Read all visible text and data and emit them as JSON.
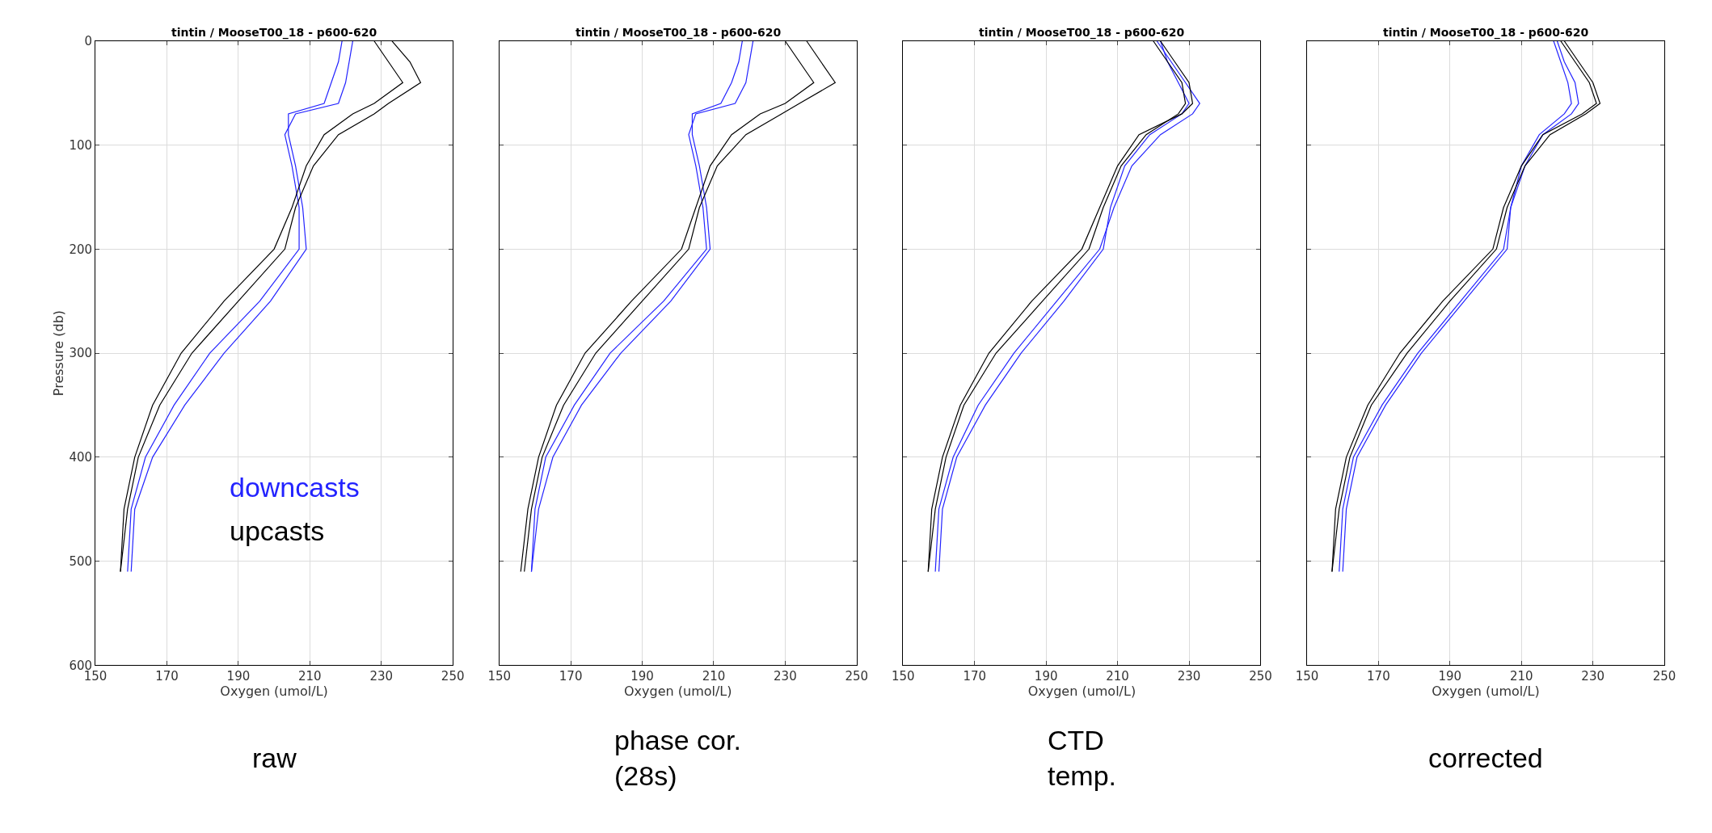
{
  "chart_data": [
    {
      "type": "line",
      "title": "tintin / MooseT00_18 - p600-620",
      "xlabel": "Oxygen (umol/L)",
      "ylabel": "Pressure (db)",
      "xlim": [
        150,
        250
      ],
      "ylim": [
        600,
        0
      ],
      "xticks": [
        150,
        170,
        190,
        210,
        230,
        250
      ],
      "yticks": [
        0,
        100,
        200,
        300,
        400,
        500,
        600
      ],
      "grid": true,
      "annotations": [
        "raw"
      ],
      "series": [
        {
          "name": "downcasts",
          "color": "#2323ff",
          "x": [
            222,
            221,
            220,
            218,
            206,
            203,
            205,
            207,
            207,
            196,
            182,
            172,
            164,
            160,
            159
          ],
          "values": [
            0,
            20,
            40,
            60,
            70,
            90,
            120,
            160,
            200,
            250,
            300,
            350,
            400,
            450,
            510
          ]
        },
        {
          "color": "#2323ff",
          "x": [
            219,
            218,
            216,
            214,
            204,
            204,
            206,
            208,
            209,
            199,
            186,
            175,
            166,
            161,
            160
          ],
          "values": [
            0,
            20,
            40,
            60,
            70,
            90,
            120,
            160,
            200,
            250,
            300,
            350,
            400,
            450,
            510
          ]
        },
        {
          "name": "upcasts",
          "color": "#000000",
          "x": [
            233,
            238,
            241,
            232,
            228,
            218,
            211,
            206,
            203,
            190,
            177,
            168,
            162,
            159,
            157
          ],
          "values": [
            0,
            20,
            40,
            60,
            70,
            90,
            120,
            160,
            200,
            250,
            300,
            350,
            400,
            450,
            510
          ]
        },
        {
          "color": "#000000",
          "x": [
            228,
            232,
            236,
            228,
            222,
            214,
            209,
            205,
            200,
            186,
            174,
            166,
            161,
            158,
            157
          ],
          "values": [
            0,
            20,
            40,
            60,
            70,
            90,
            120,
            160,
            200,
            250,
            300,
            350,
            400,
            450,
            510
          ]
        }
      ]
    },
    {
      "type": "line",
      "title": "tintin / MooseT00_18 - p600-620",
      "xlabel": "Oxygen (umol/L)",
      "xlim": [
        150,
        250
      ],
      "ylim": [
        600,
        0
      ],
      "xticks": [
        150,
        170,
        190,
        210,
        230,
        250
      ],
      "yticks": [
        0,
        100,
        200,
        300,
        400,
        500,
        600
      ],
      "grid": true,
      "tick_labels": "x",
      "annotations": [
        "phase cor.\n(28s)"
      ],
      "series": [
        {
          "color": "#2323ff",
          "x": [
            221,
            220,
            219,
            216,
            205,
            203,
            205,
            207,
            208,
            196,
            181,
            171,
            163,
            160,
            159
          ],
          "values": [
            0,
            20,
            40,
            60,
            70,
            90,
            120,
            160,
            200,
            250,
            300,
            350,
            400,
            450,
            510
          ]
        },
        {
          "color": "#2323ff",
          "x": [
            218,
            217,
            215,
            212,
            204,
            204,
            206,
            208,
            209,
            198,
            184,
            173,
            165,
            161,
            159
          ],
          "values": [
            0,
            20,
            40,
            60,
            70,
            90,
            120,
            160,
            200,
            250,
            300,
            350,
            400,
            450,
            510
          ]
        },
        {
          "color": "#000000",
          "x": [
            236,
            240,
            244,
            234,
            229,
            219,
            211,
            206,
            203,
            190,
            177,
            168,
            162,
            159,
            157
          ],
          "values": [
            0,
            20,
            40,
            60,
            70,
            90,
            120,
            160,
            200,
            250,
            300,
            350,
            400,
            450,
            510
          ]
        },
        {
          "color": "#000000",
          "x": [
            230,
            234,
            238,
            230,
            223,
            215,
            209,
            205,
            201,
            187,
            174,
            166,
            161,
            158,
            156
          ],
          "values": [
            0,
            20,
            40,
            60,
            70,
            90,
            120,
            160,
            200,
            250,
            300,
            350,
            400,
            450,
            510
          ]
        }
      ]
    },
    {
      "type": "line",
      "title": "tintin / MooseT00_18 - p600-620",
      "xlabel": "Oxygen (umol/L)",
      "xlim": [
        150,
        250
      ],
      "ylim": [
        600,
        0
      ],
      "xticks": [
        150,
        170,
        190,
        210,
        230,
        250
      ],
      "yticks": [
        0,
        100,
        200,
        300,
        400,
        500,
        600
      ],
      "grid": true,
      "tick_labels": "x",
      "annotations": [
        "CTD\ntemp."
      ],
      "series": [
        {
          "color": "#2323ff",
          "x": [
            221,
            225,
            229,
            233,
            231,
            222,
            214,
            209,
            205,
            193,
            181,
            171,
            164,
            160,
            159
          ],
          "values": [
            0,
            20,
            40,
            60,
            70,
            90,
            120,
            160,
            200,
            250,
            300,
            350,
            400,
            450,
            510
          ]
        },
        {
          "color": "#2323ff",
          "x": [
            222,
            224,
            227,
            230,
            228,
            219,
            212,
            208,
            206,
            195,
            183,
            173,
            165,
            161,
            160
          ],
          "values": [
            0,
            20,
            40,
            60,
            70,
            90,
            120,
            160,
            200,
            250,
            300,
            350,
            400,
            450,
            510
          ]
        },
        {
          "color": "#000000",
          "x": [
            220,
            224,
            228,
            229,
            227,
            218,
            211,
            206,
            202,
            189,
            176,
            167,
            162,
            159,
            157
          ],
          "values": [
            0,
            20,
            40,
            60,
            70,
            90,
            120,
            160,
            200,
            250,
            300,
            350,
            400,
            450,
            510
          ]
        },
        {
          "color": "#000000",
          "x": [
            222,
            226,
            230,
            231,
            228,
            216,
            210,
            205,
            200,
            186,
            174,
            166,
            161,
            158,
            157
          ],
          "values": [
            0,
            20,
            40,
            60,
            70,
            90,
            120,
            160,
            200,
            250,
            300,
            350,
            400,
            450,
            510
          ]
        }
      ]
    },
    {
      "type": "line",
      "title": "tintin / MooseT00_18 - p600-620",
      "xlabel": "Oxygen (umol/L)",
      "xlim": [
        150,
        250
      ],
      "ylim": [
        600,
        0
      ],
      "xticks": [
        150,
        170,
        190,
        210,
        230,
        250
      ],
      "yticks": [
        0,
        100,
        200,
        300,
        400,
        500,
        600
      ],
      "grid": true,
      "tick_labels": "x",
      "annotations": [
        "corrected"
      ],
      "series": [
        {
          "color": "#2323ff",
          "x": [
            220,
            222,
            225,
            226,
            224,
            216,
            211,
            207,
            205,
            193,
            181,
            171,
            163,
            160,
            159
          ],
          "values": [
            0,
            20,
            40,
            60,
            70,
            90,
            120,
            160,
            200,
            250,
            300,
            350,
            400,
            450,
            510
          ]
        },
        {
          "color": "#2323ff",
          "x": [
            219,
            221,
            223,
            224,
            222,
            215,
            210,
            207,
            206,
            194,
            182,
            172,
            164,
            161,
            160
          ],
          "values": [
            0,
            20,
            40,
            60,
            70,
            90,
            120,
            160,
            200,
            250,
            300,
            350,
            400,
            450,
            510
          ]
        },
        {
          "color": "#000000",
          "x": [
            222,
            226,
            230,
            232,
            228,
            218,
            211,
            206,
            203,
            190,
            178,
            168,
            162,
            159,
            157
          ],
          "values": [
            0,
            20,
            40,
            60,
            70,
            90,
            120,
            160,
            200,
            250,
            300,
            350,
            400,
            450,
            510
          ]
        },
        {
          "color": "#000000",
          "x": [
            221,
            225,
            229,
            231,
            227,
            216,
            210,
            205,
            202,
            188,
            176,
            167,
            161,
            158,
            157
          ],
          "values": [
            0,
            20,
            40,
            60,
            70,
            90,
            120,
            160,
            200,
            250,
            300,
            350,
            400,
            450,
            510
          ]
        }
      ]
    }
  ]
}
